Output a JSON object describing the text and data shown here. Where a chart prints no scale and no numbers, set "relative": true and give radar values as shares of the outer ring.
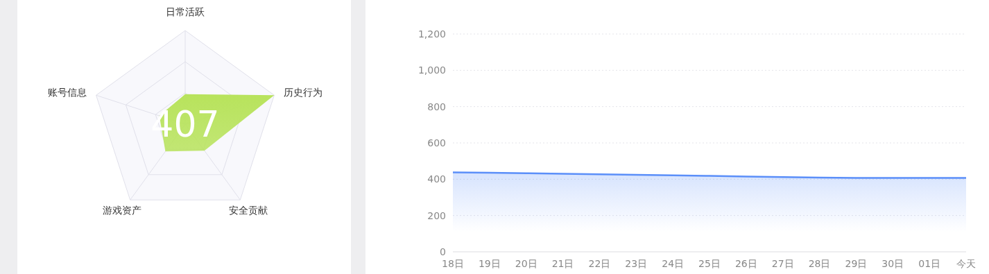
{
  "chart_data": [
    {
      "type": "radar",
      "relative": true,
      "categories": [
        "日常活跃",
        "历史行为",
        "安全贡献",
        "游戏资产",
        "账号信息"
      ],
      "series": [
        {
          "color": "#b8e35c",
          "values": [
            0.32,
            1.0,
            0.35,
            0.36,
            0.29
          ]
        }
      ],
      "annotations": [
        "407"
      ]
    },
    {
      "type": "area",
      "categories": [
        "18日",
        "19日",
        "20日",
        "21日",
        "22日",
        "23日",
        "24日",
        "25日",
        "26日",
        "27日",
        "28日",
        "29日",
        "30日",
        "01日",
        "今天"
      ],
      "series": [
        {
          "color": "#5b8ff9",
          "values": [
            438,
            436,
            433,
            430,
            427,
            424,
            421,
            418,
            415,
            412,
            409,
            407,
            407,
            407,
            407
          ]
        }
      ],
      "ylim": [
        0,
        1200
      ],
      "yticks": [
        0,
        200,
        400,
        600,
        800,
        {
          "value": 1000,
          "label": "1,000"
        },
        {
          "value": 1200,
          "label": "1,200"
        }
      ],
      "grid": "y"
    }
  ]
}
